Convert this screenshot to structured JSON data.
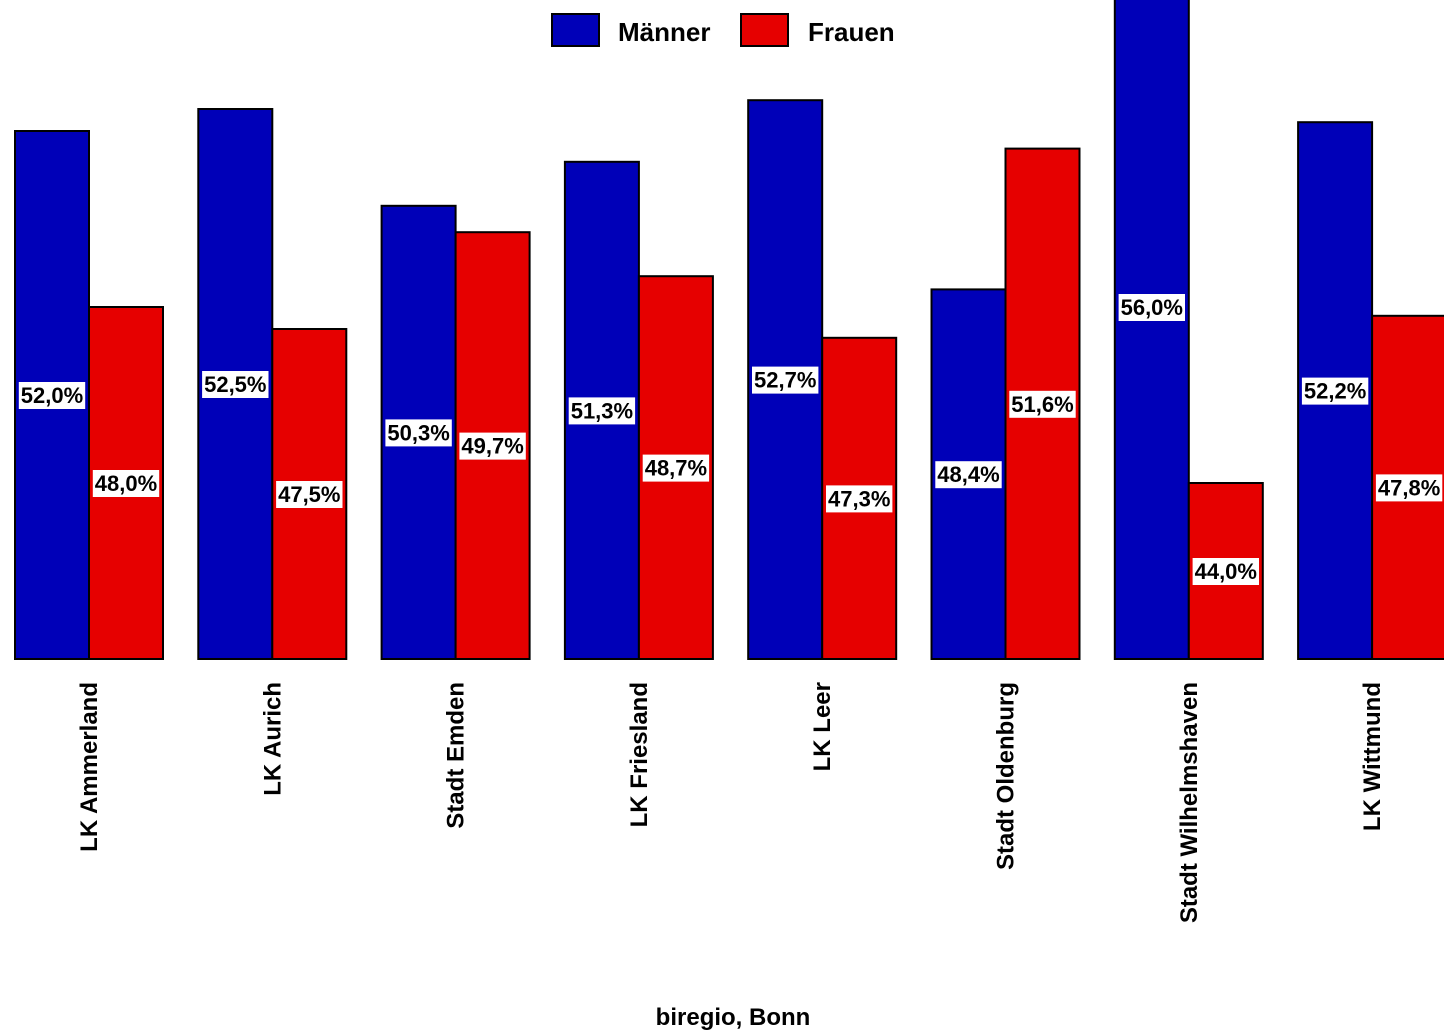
{
  "chart_data": {
    "type": "bar",
    "title": "",
    "xlabel": "",
    "ylabel": "",
    "caption": "biregio, Bonn",
    "legend_position": "top-center",
    "grid": false,
    "ylim": [
      40,
      58
    ],
    "colors": {
      "Männer": "#0000b8",
      "Frauen": "#e60000"
    },
    "categories": [
      "LK Ammerland",
      "LK Aurich",
      "Stadt Emden",
      "LK Friesland",
      "LK Leer",
      "Stadt Oldenburg",
      "Stadt Wilhelmshaven",
      "LK Wittmund"
    ],
    "series": [
      {
        "name": "Männer",
        "values": [
          52.0,
          52.5,
          50.3,
          51.3,
          52.7,
          48.4,
          56.0,
          52.2
        ],
        "labels": [
          "52,0%",
          "52,5%",
          "50,3%",
          "51,3%",
          "52,7%",
          "48,4%",
          "56,0%",
          "52,2%"
        ]
      },
      {
        "name": "Frauen",
        "values": [
          48.0,
          47.5,
          49.7,
          48.7,
          47.3,
          51.6,
          44.0,
          47.8
        ],
        "labels": [
          "48,0%",
          "47,5%",
          "49,7%",
          "48,7%",
          "47,3%",
          "51,6%",
          "44,0%",
          "47,8%"
        ]
      }
    ]
  }
}
